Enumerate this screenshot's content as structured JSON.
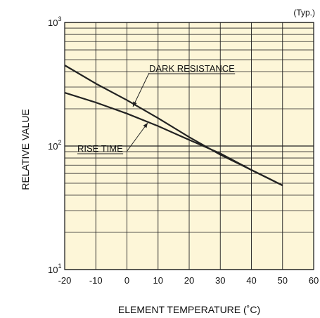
{
  "chart_data": {
    "type": "line",
    "title": "",
    "subtitle": "",
    "note": "(Typ.)",
    "xlabel": "ELEMENT TEMPERATURE (˚C)",
    "ylabel": "RELATIVE VALUE",
    "y_scale": "log",
    "xlim": [
      -20,
      60
    ],
    "ylim": [
      10,
      1000
    ],
    "x_ticks": [
      -20,
      -10,
      0,
      10,
      20,
      30,
      40,
      50,
      60
    ],
    "x_tick_labels": [
      "-20",
      "-10",
      "0",
      "10",
      "20",
      "30",
      "40",
      "50",
      "60"
    ],
    "y_ticks": [
      {
        "value": 10,
        "base": "10",
        "exp": "1"
      },
      {
        "value": 100,
        "base": "10",
        "exp": "2"
      },
      {
        "value": 1000,
        "base": "10",
        "exp": "3"
      }
    ],
    "grid": true,
    "colors": {
      "plot_background": "#fdf6d8",
      "grid": "#222222",
      "line": "#222222"
    },
    "series": [
      {
        "name": "DARK RESISTANCE",
        "x": [
          -20,
          -10,
          0,
          10,
          20,
          30,
          40,
          50
        ],
        "y": [
          450,
          320,
          235,
          168,
          118,
          85,
          64,
          48
        ]
      },
      {
        "name": "RISE TIME",
        "x": [
          -20,
          -10,
          0,
          10,
          20,
          30,
          40,
          50
        ],
        "y": [
          270,
          225,
          183,
          145,
          112,
          87,
          64,
          48
        ]
      }
    ]
  }
}
